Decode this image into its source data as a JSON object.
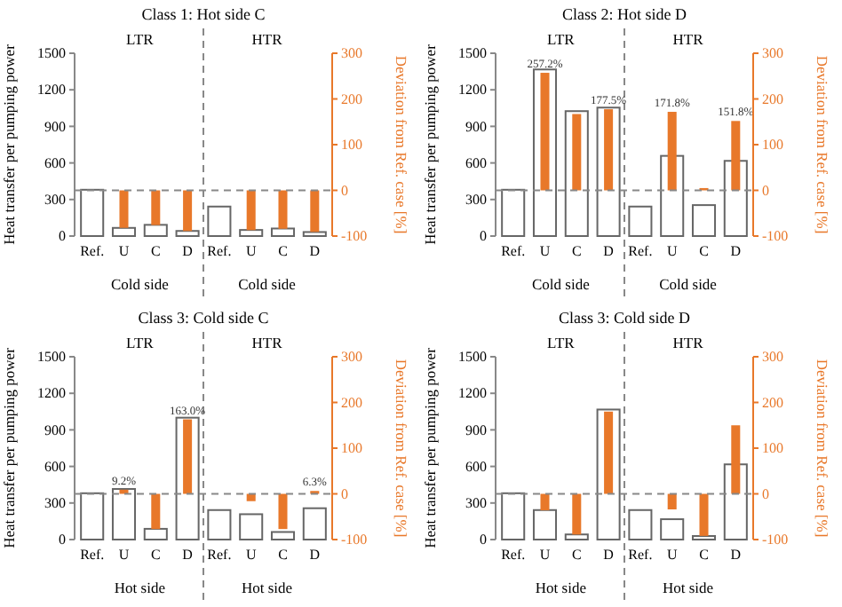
{
  "chart_data": [
    {
      "type": "bar",
      "title": "Class 1: Hot side C",
      "xlabel": "Cold side",
      "ylabel": "Heat transfer per pumping power",
      "y2label": "Deviation from Ref. case [%]",
      "annotations": [
        "LTR",
        "HTR"
      ],
      "categories": [
        "Ref.",
        "U",
        "C",
        "D",
        "Ref.",
        "U",
        "C",
        "D"
      ],
      "series": [
        {
          "color": "#ffffff",
          "values": [
            380,
            67,
            92,
            42,
            242,
            50,
            62,
            33
          ]
        },
        {
          "color": "#e8782a",
          "axis": "y2",
          "values": [
            null,
            -82,
            -76,
            -89,
            null,
            -87,
            -84,
            -91
          ]
        }
      ],
      "ylim": [
        0,
        1500
      ],
      "yticks": [
        0,
        300,
        600,
        900,
        1200,
        1500
      ],
      "y2lim": [
        -100,
        300
      ],
      "y2ticks": [
        -100,
        0,
        100,
        200,
        300
      ],
      "ref_lines": [
        {
          "axis": "y2",
          "value": 0,
          "line_style": "dashed",
          "color": "#888888"
        }
      ],
      "grid": false
    },
    {
      "type": "bar",
      "title": "Class 2: Hot side D",
      "xlabel": "Cold side",
      "ylabel": "Heat transfer per pumping power",
      "y2label": "Deviation from Ref. case [%]",
      "annotations": [
        "LTR",
        "HTR"
      ],
      "categories": [
        "Ref.",
        "U",
        "C",
        "D",
        "Ref.",
        "U",
        "C",
        "D"
      ],
      "series": [
        {
          "color": "#ffffff",
          "values": [
            380,
            1367,
            1025,
            1054,
            242,
            658,
            254,
            617
          ]
        },
        {
          "color": "#e8782a",
          "axis": "y2",
          "values": [
            null,
            257.2,
            167,
            177.5,
            null,
            171.8,
            5,
            151.8
          ],
          "value_labels": [
            null,
            "257.2%",
            null,
            "177.5%",
            null,
            "171.8%",
            null,
            "151.8%"
          ]
        }
      ],
      "ylim": [
        0,
        1500
      ],
      "yticks": [
        0,
        300,
        600,
        900,
        1200,
        1500
      ],
      "y2lim": [
        -100,
        300
      ],
      "y2ticks": [
        -100,
        0,
        100,
        200,
        300
      ],
      "ref_lines": [
        {
          "axis": "y2",
          "value": 0,
          "line_style": "dashed",
          "color": "#888888"
        }
      ],
      "grid": false
    },
    {
      "type": "bar",
      "title": "Class 3: Cold side C",
      "xlabel": "Hot side",
      "ylabel": "Heat transfer per pumping power",
      "y2label": "Deviation from Ref. case [%]",
      "annotations": [
        "LTR",
        "HTR"
      ],
      "categories": [
        "Ref.",
        "U",
        "C",
        "D",
        "Ref.",
        "U",
        "C",
        "D"
      ],
      "series": [
        {
          "color": "#ffffff",
          "values": [
            380,
            415,
            88,
            1000,
            242,
            208,
            62,
            257
          ]
        },
        {
          "color": "#e8782a",
          "axis": "y2",
          "values": [
            null,
            9.2,
            -77,
            163.0,
            null,
            -16,
            -77,
            6.3
          ],
          "value_labels": [
            null,
            "9.2%",
            null,
            "163.0%",
            null,
            null,
            null,
            "6.3%"
          ]
        }
      ],
      "ylim": [
        0,
        1500
      ],
      "yticks": [
        0,
        300,
        600,
        900,
        1200,
        1500
      ],
      "y2lim": [
        -100,
        300
      ],
      "y2ticks": [
        -100,
        0,
        100,
        200,
        300
      ],
      "ref_lines": [
        {
          "axis": "y2",
          "value": 0,
          "line_style": "dashed",
          "color": "#888888"
        }
      ],
      "grid": false
    },
    {
      "type": "bar",
      "title": "Class 3: Cold side D",
      "xlabel": "Hot side",
      "ylabel": "Heat transfer per pumping power",
      "y2label": "Deviation from Ref. case [%]",
      "annotations": [
        "LTR",
        "HTR"
      ],
      "categories": [
        "Ref.",
        "U",
        "C",
        "D",
        "Ref.",
        "U",
        "C",
        "D"
      ],
      "series": [
        {
          "color": "#ffffff",
          "values": [
            380,
            242,
            42,
            1067,
            242,
            167,
            29,
            617
          ]
        },
        {
          "color": "#e8782a",
          "axis": "y2",
          "values": [
            null,
            -36,
            -89,
            180,
            null,
            -34,
            -92,
            150
          ]
        }
      ],
      "ylim": [
        0,
        1500
      ],
      "yticks": [
        0,
        300,
        600,
        900,
        1200,
        1500
      ],
      "y2lim": [
        -100,
        300
      ],
      "y2ticks": [
        -100,
        0,
        100,
        200,
        300
      ],
      "ref_lines": [
        {
          "axis": "y2",
          "value": 0,
          "line_style": "dashed",
          "color": "#888888"
        }
      ],
      "grid": false
    }
  ]
}
